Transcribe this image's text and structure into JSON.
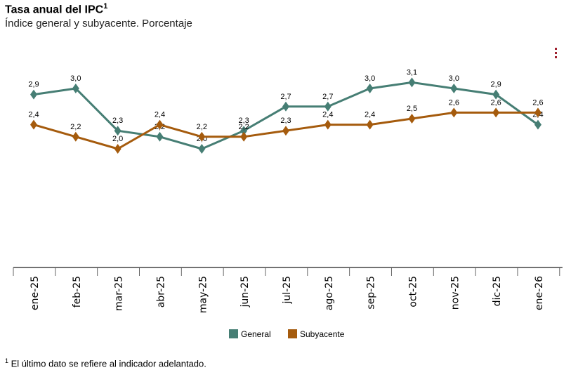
{
  "title": "Tasa anual del IPC",
  "title_sup": "1",
  "subtitle": "Índice general y subyacente. Porcentaje",
  "footnote_sup": "1",
  "footnote": "El último dato se refiere al indicador adelantado.",
  "menu_icon": "vertical-dots-icon",
  "chart_data": {
    "type": "line",
    "categories": [
      "ene-25",
      "feb-25",
      "mar-25",
      "abr-25",
      "may-25",
      "jun-25",
      "jul-25",
      "ago-25",
      "sep-25",
      "oct-25",
      "nov-25",
      "dic-25",
      "ene-26"
    ],
    "series": [
      {
        "name": "General",
        "color": "#467e74",
        "values": [
          2.9,
          3.0,
          2.3,
          2.2,
          2.0,
          2.3,
          2.7,
          2.7,
          3.0,
          3.1,
          3.0,
          2.9,
          2.4
        ]
      },
      {
        "name": "Subyacente",
        "color": "#a55b0d",
        "values": [
          2.4,
          2.2,
          2.0,
          2.4,
          2.2,
          2.2,
          2.3,
          2.4,
          2.4,
          2.5,
          2.6,
          2.6,
          2.6
        ]
      }
    ],
    "ylim": [
      0,
      3.1
    ],
    "y_axis_visible": false,
    "grid": false,
    "marker": "diamond",
    "data_labels": true,
    "legend_position": "bottom-center"
  }
}
